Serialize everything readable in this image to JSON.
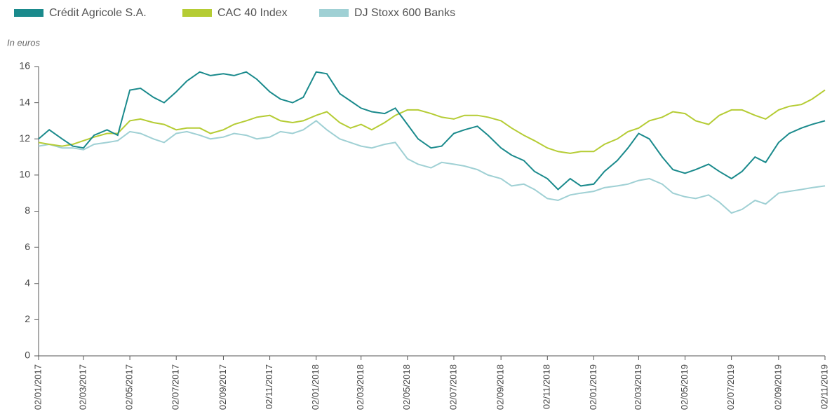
{
  "chart_data": {
    "type": "line",
    "y_label": "In euros",
    "x": [
      "2017-01-02",
      "2017-01-16",
      "2017-02-02",
      "2017-02-16",
      "2017-03-02",
      "2017-03-16",
      "2017-04-02",
      "2017-04-16",
      "2017-05-02",
      "2017-05-16",
      "2017-06-02",
      "2017-06-16",
      "2017-07-02",
      "2017-07-16",
      "2017-08-02",
      "2017-08-16",
      "2017-09-02",
      "2017-09-16",
      "2017-10-02",
      "2017-10-16",
      "2017-11-02",
      "2017-11-16",
      "2017-12-02",
      "2017-12-16",
      "2018-01-02",
      "2018-01-16",
      "2018-02-02",
      "2018-02-16",
      "2018-03-02",
      "2018-03-16",
      "2018-04-02",
      "2018-04-16",
      "2018-05-02",
      "2018-05-16",
      "2018-06-02",
      "2018-06-16",
      "2018-07-02",
      "2018-07-16",
      "2018-08-02",
      "2018-08-16",
      "2018-09-02",
      "2018-09-16",
      "2018-10-02",
      "2018-10-16",
      "2018-11-02",
      "2018-11-16",
      "2018-12-02",
      "2018-12-16",
      "2019-01-02",
      "2019-01-16",
      "2019-02-02",
      "2019-02-16",
      "2019-03-02",
      "2019-03-16",
      "2019-04-02",
      "2019-04-16",
      "2019-05-02",
      "2019-05-16",
      "2019-06-02",
      "2019-06-16",
      "2019-07-02",
      "2019-07-16",
      "2019-08-02",
      "2019-08-16",
      "2019-09-02",
      "2019-09-16",
      "2019-10-02",
      "2019-10-16",
      "2019-11-02"
    ],
    "series": [
      {
        "name": "Crédit Agricole S.A.",
        "color": "#1a8a8c",
        "values": [
          12.0,
          12.5,
          12.0,
          11.6,
          11.5,
          12.2,
          12.5,
          12.2,
          14.7,
          14.8,
          14.3,
          14.0,
          14.6,
          15.2,
          15.7,
          15.5,
          15.6,
          15.5,
          15.7,
          15.3,
          14.6,
          14.2,
          14.0,
          14.3,
          15.7,
          15.6,
          14.5,
          14.1,
          13.7,
          13.5,
          13.4,
          13.7,
          12.8,
          12.0,
          11.5,
          11.6,
          12.3,
          12.5,
          12.7,
          12.2,
          11.5,
          11.1,
          10.8,
          10.2,
          9.8,
          9.2,
          9.8,
          9.4,
          9.5,
          10.2,
          10.8,
          11.5,
          12.3,
          12.0,
          11.0,
          10.3,
          10.1,
          10.3,
          10.6,
          10.2,
          9.8,
          10.2,
          11.0,
          10.7,
          11.8,
          12.3,
          12.6,
          12.8,
          13.0
        ]
      },
      {
        "name": "CAC 40 Index",
        "color": "#b5cc34",
        "values": [
          11.8,
          11.7,
          11.6,
          11.7,
          11.9,
          12.1,
          12.3,
          12.3,
          13.0,
          13.1,
          12.9,
          12.8,
          12.5,
          12.6,
          12.6,
          12.3,
          12.5,
          12.8,
          13.0,
          13.2,
          13.3,
          13.0,
          12.9,
          13.0,
          13.3,
          13.5,
          12.9,
          12.6,
          12.8,
          12.5,
          12.9,
          13.3,
          13.6,
          13.6,
          13.4,
          13.2,
          13.1,
          13.3,
          13.3,
          13.2,
          13.0,
          12.6,
          12.2,
          11.9,
          11.5,
          11.3,
          11.2,
          11.3,
          11.3,
          11.7,
          12.0,
          12.4,
          12.6,
          13.0,
          13.2,
          13.5,
          13.4,
          13.0,
          12.8,
          13.3,
          13.6,
          13.6,
          13.3,
          13.1,
          13.6,
          13.8,
          13.9,
          14.2,
          14.7
        ]
      },
      {
        "name": "DJ Stoxx 600 Banks",
        "color": "#9fd0d4",
        "values": [
          11.6,
          11.7,
          11.5,
          11.5,
          11.4,
          11.7,
          11.8,
          11.9,
          12.4,
          12.3,
          12.0,
          11.8,
          12.3,
          12.4,
          12.2,
          12.0,
          12.1,
          12.3,
          12.2,
          12.0,
          12.1,
          12.4,
          12.3,
          12.5,
          13.0,
          12.5,
          12.0,
          11.8,
          11.6,
          11.5,
          11.7,
          11.8,
          10.9,
          10.6,
          10.4,
          10.7,
          10.6,
          10.5,
          10.3,
          10.0,
          9.8,
          9.4,
          9.5,
          9.2,
          8.7,
          8.6,
          8.9,
          9.0,
          9.1,
          9.3,
          9.4,
          9.5,
          9.7,
          9.8,
          9.5,
          9.0,
          8.8,
          8.7,
          8.9,
          8.5,
          7.9,
          8.1,
          8.6,
          8.4,
          9.0,
          9.1,
          9.2,
          9.3,
          9.4
        ]
      }
    ],
    "xlim": [
      "2017-01-02",
      "2019-11-02"
    ],
    "xticks": [
      {
        "value": "2017-01-02",
        "label": "02/01/2017"
      },
      {
        "value": "2017-03-02",
        "label": "02/03/2017"
      },
      {
        "value": "2017-05-02",
        "label": "02/05/2017"
      },
      {
        "value": "2017-07-02",
        "label": "02/07/2017"
      },
      {
        "value": "2017-09-02",
        "label": "02/09/2017"
      },
      {
        "value": "2017-11-02",
        "label": "02/11/2017"
      },
      {
        "value": "2018-01-02",
        "label": "02/01/2018"
      },
      {
        "value": "2018-03-02",
        "label": "02/03/2018"
      },
      {
        "value": "2018-05-02",
        "label": "02/05/2018"
      },
      {
        "value": "2018-07-02",
        "label": "02/07/2018"
      },
      {
        "value": "2018-09-02",
        "label": "02/09/2018"
      },
      {
        "value": "2018-11-02",
        "label": "02/11/2018"
      },
      {
        "value": "2019-01-02",
        "label": "02/01/2019"
      },
      {
        "value": "2019-03-02",
        "label": "02/03/2019"
      },
      {
        "value": "2019-05-02",
        "label": "02/05/2019"
      },
      {
        "value": "2019-07-02",
        "label": "02/07/2019"
      },
      {
        "value": "2019-09-02",
        "label": "02/09/2019"
      },
      {
        "value": "2019-11-02",
        "label": "02/11/2019"
      }
    ],
    "ylim": [
      0,
      16
    ],
    "yticks": [
      0,
      2,
      4,
      6,
      8,
      10,
      12,
      14,
      16
    ],
    "grid": false
  }
}
